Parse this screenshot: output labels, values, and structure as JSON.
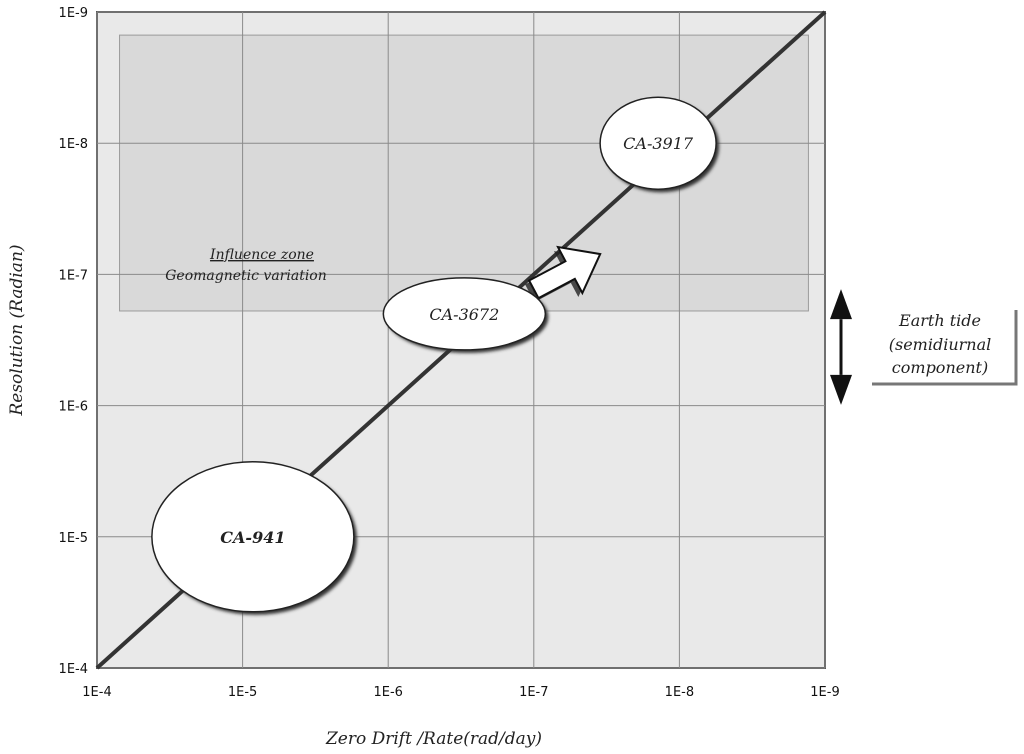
{
  "chart_data": {
    "type": "scatter",
    "title": "",
    "xlabel": "Zero Drift /Rate(rad/day)",
    "ylabel": "Resolution (Radian)",
    "xscale": "log-reversed",
    "yscale": "log-reversed",
    "xlim": [
      0.0001,
      1e-09
    ],
    "ylim": [
      0.0001,
      1e-09
    ],
    "grid": true,
    "x_ticks": [
      "1E-4",
      "1E-5",
      "1E-6",
      "1E-7",
      "1E-8",
      "1E-9"
    ],
    "y_ticks": [
      "1E-4",
      "1E-5",
      "1E-6",
      "1E-7",
      "1E-8",
      "1E-9"
    ],
    "trend_line": {
      "from": [
        0.0001,
        0.0001
      ],
      "to": [
        1e-09,
        1e-09
      ]
    },
    "instruments": [
      {
        "label": "CA-941",
        "x_center": 8.5e-06,
        "y_center": 1e-05,
        "bold": true
      },
      {
        "label": "CA-3672",
        "x_center": 3e-07,
        "y_center": 2e-07,
        "bold": false
      },
      {
        "label": "CA-3917",
        "x_center": 1.4e-08,
        "y_center": 1e-08,
        "bold": false
      }
    ],
    "influence_zone": {
      "title": "Influence zone",
      "subtitle": "Geomagnetic variation",
      "x_range": [
        7e-05,
        1.3e-09
      ],
      "y_range": [
        1.9e-07,
        1.5e-09
      ]
    },
    "earth_tide": {
      "lines": [
        "Earth tide",
        "(semidiurnal",
        "component)"
      ],
      "y_range": [
        1.6e-07,
        8e-07
      ]
    },
    "arrow": {
      "from": [
        1e-07,
        1.3e-07
      ],
      "to": [
        3.5e-08,
        7e-08
      ]
    }
  }
}
